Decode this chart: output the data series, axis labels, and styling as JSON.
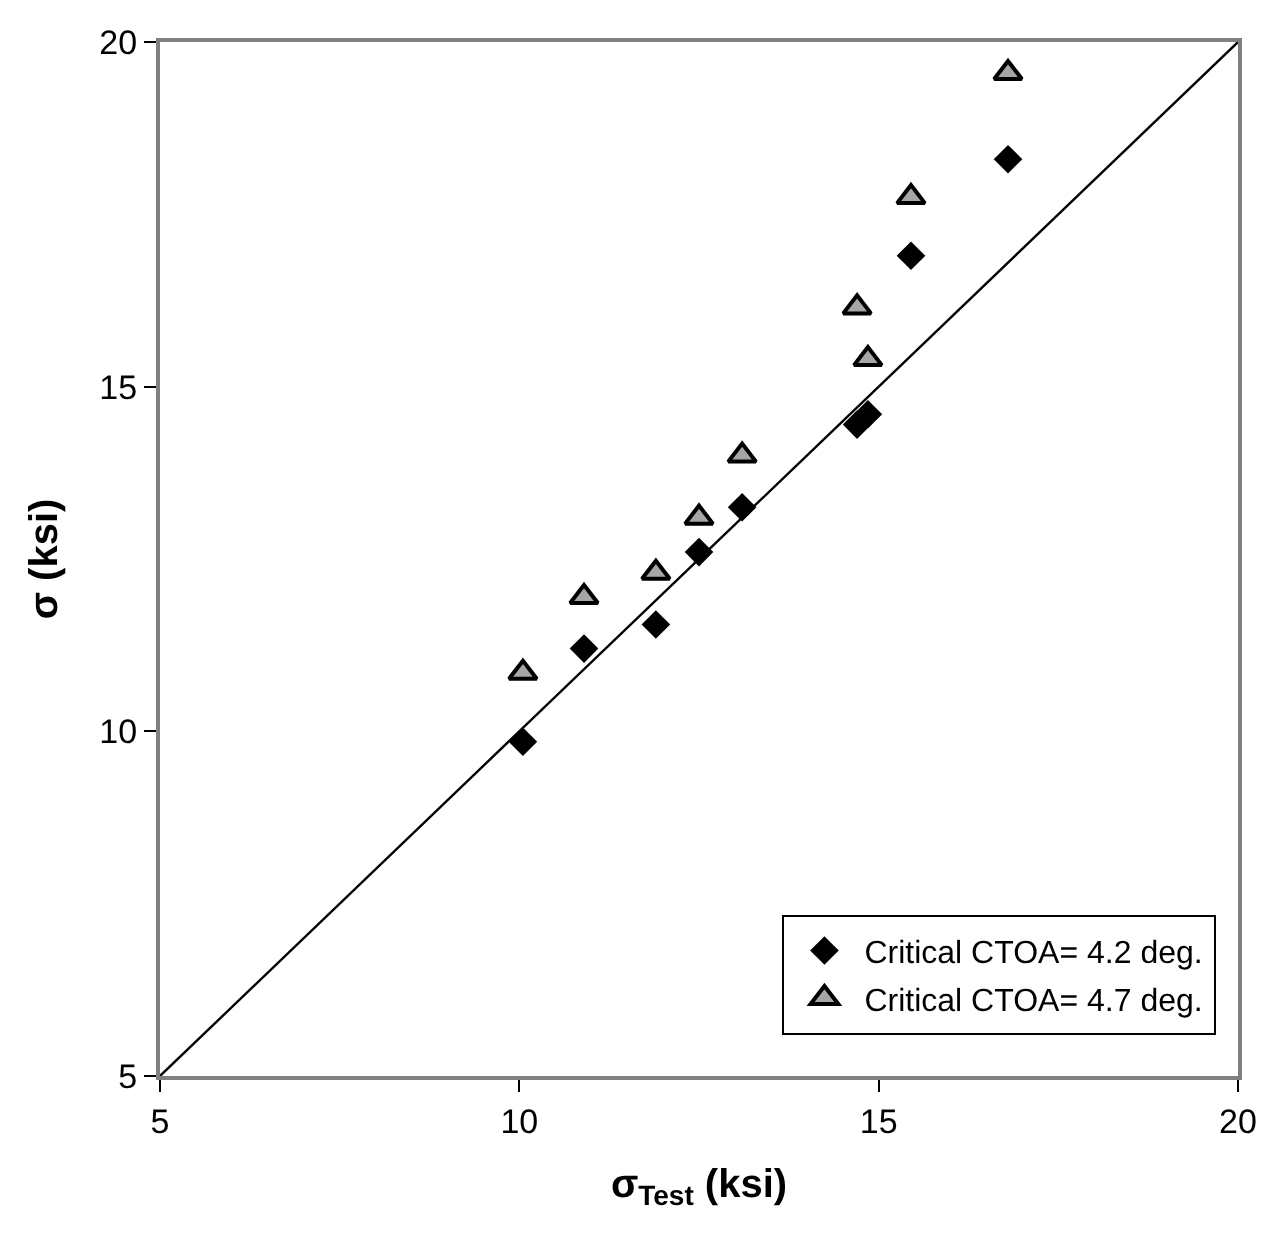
{
  "chart_data": {
    "type": "scatter",
    "xlabel": "σ$_{Test}$ (ksi)",
    "ylabel": "σ (ksi)",
    "xlim": [
      5,
      20
    ],
    "xticks": [
      5,
      10,
      15,
      20
    ],
    "ylim": [
      5,
      20
    ],
    "yticks": [
      5,
      10,
      15,
      20
    ],
    "legend": "bottom right",
    "series": [
      {
        "name": "Critical CTOA= 4.2 deg.",
        "color": "#000000",
        "marker": "diamond",
        "x": [
          10.05,
          10.9,
          11.9,
          12.5,
          13.1,
          14.7,
          14.85,
          15.45,
          16.8
        ],
        "values": [
          9.85,
          11.2,
          11.55,
          12.6,
          13.25,
          14.45,
          14.6,
          16.9,
          18.3
        ]
      },
      {
        "name": "Critical CTOA= 4.7 deg.",
        "color": "#a6a6a6",
        "marker": "triangle",
        "x": [
          10.05,
          10.9,
          11.9,
          12.5,
          13.1,
          14.7,
          14.85,
          15.45,
          16.8
        ],
        "values": [
          10.85,
          11.95,
          12.3,
          13.1,
          14.0,
          16.15,
          15.4,
          17.75,
          19.55
        ]
      },
      {
        "type": "line",
        "color": "#000000",
        "marker": "none",
        "x": [
          5,
          20
        ],
        "values": [
          5,
          20
        ]
      }
    ]
  }
}
